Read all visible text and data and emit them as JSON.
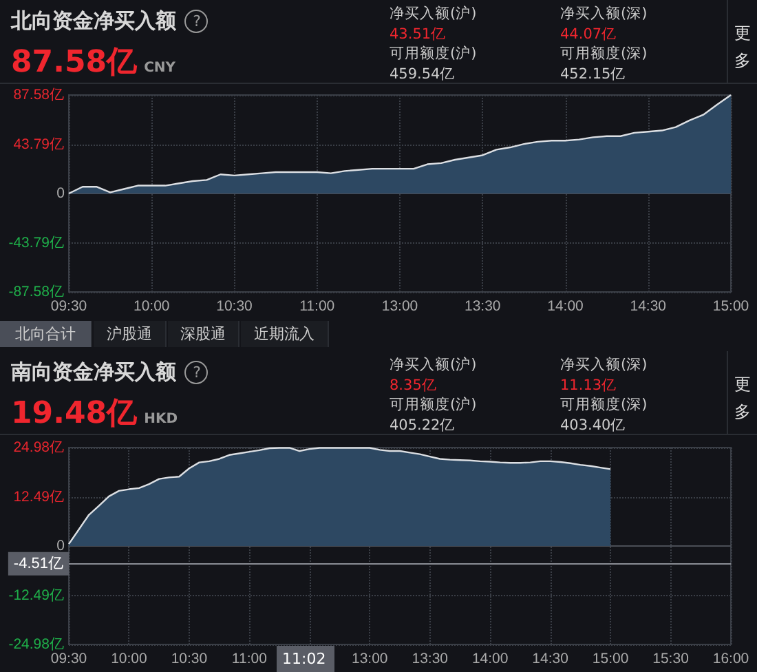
{
  "chart_data": [
    {
      "type": "area",
      "title": "北向资金净买入额",
      "subtitle": "87.58亿",
      "annotations": [
        "?",
        "CNY",
        "净买入额(沪)",
        "43.51亿",
        "净买入额(深)",
        "44.07亿",
        "可用额度(沪)",
        "459.54亿",
        "可用额度(深)",
        "452.15亿",
        "更多",
        "北向合计",
        "沪股通",
        "深股通",
        "近期流入"
      ],
      "categories": [
        "09:30",
        null,
        null,
        null,
        null,
        null,
        "10:00",
        null,
        null,
        null,
        null,
        null,
        "10:30",
        null,
        null,
        null,
        null,
        null,
        "11:00",
        null,
        null,
        null,
        null,
        null,
        "13:00",
        null,
        null,
        null,
        null,
        null,
        "13:30",
        null,
        null,
        null,
        null,
        null,
        "14:00",
        null,
        null,
        null,
        null,
        null,
        "14:30",
        null,
        null,
        null,
        null,
        null,
        "15:00"
      ],
      "series": [
        {
          "color": "#2d4862",
          "values": [
            0,
            6,
            6,
            1,
            4,
            7,
            7,
            7,
            9,
            11,
            12,
            17,
            16,
            17,
            18,
            19,
            19,
            19,
            19,
            18,
            20,
            21,
            22,
            22,
            22,
            22,
            26,
            27,
            30,
            32,
            34,
            39,
            41,
            44,
            46,
            47,
            47,
            48,
            50,
            51,
            51,
            54,
            55,
            56,
            59,
            65,
            70,
            79,
            87.58
          ]
        }
      ],
      "ylim": [
        -87.58,
        87.58
      ],
      "yticks": [
        {
          "value": -87.58,
          "label": "-87.58亿"
        },
        {
          "value": -43.79,
          "label": "-43.79亿"
        },
        0,
        {
          "value": 43.79,
          "label": "43.79亿"
        },
        {
          "value": 87.58,
          "label": "87.58亿"
        }
      ],
      "grid": true
    },
    {
      "type": "area",
      "title": "南向资金净买入额",
      "subtitle": "19.48亿",
      "annotations": [
        "?",
        "HKD",
        "净买入额(沪)",
        "8.35亿",
        "净买入额(深)",
        "11.13亿",
        "可用额度(沪)",
        "405.22亿",
        "可用额度(深)",
        "403.40亿",
        "更多",
        "11:02"
      ],
      "categories": [
        "09:30",
        null,
        null,
        null,
        null,
        null,
        "10:00",
        null,
        null,
        null,
        null,
        null,
        "10:30",
        null,
        null,
        null,
        null,
        null,
        "11:00",
        null,
        null,
        null,
        null,
        null,
        null,
        null,
        null,
        null,
        null,
        null,
        "13:00",
        null,
        null,
        null,
        null,
        null,
        "13:30",
        null,
        null,
        null,
        null,
        null,
        "14:00",
        null,
        null,
        null,
        null,
        null,
        "14:30",
        null,
        null,
        null,
        null,
        null,
        "15:00",
        null,
        null,
        null,
        null,
        null,
        "15:30",
        null,
        null,
        null,
        null,
        null,
        "16:00"
      ],
      "series": [
        {
          "color": "#2d4862",
          "values": [
            0.5,
            4.2,
            7.9,
            10.2,
            12.6,
            14.0,
            14.4,
            14.7,
            15.7,
            17.0,
            17.4,
            17.6,
            19.7,
            21.2,
            21.5,
            22.1,
            23.1,
            23.5,
            23.9,
            24.3,
            24.8,
            24.9,
            24.9,
            24.1,
            24.6,
            24.9,
            24.9,
            24.9,
            24.9,
            24.9,
            24.9,
            24.4,
            24.1,
            24.1,
            23.7,
            23.3,
            22.7,
            22.1,
            21.9,
            21.8,
            21.7,
            21.5,
            21.4,
            21.2,
            21.1,
            21.1,
            21.2,
            21.5,
            21.5,
            21.3,
            21.0,
            20.6,
            20.3,
            19.9,
            19.5,
            null,
            null,
            null,
            null,
            null,
            null,
            null,
            null,
            null,
            null,
            null,
            null
          ]
        }
      ],
      "ylim": [
        -24.98,
        24.98
      ],
      "yticks": [
        {
          "value": -24.98,
          "label": "-24.98亿"
        },
        {
          "value": -12.49,
          "label": "-12.49亿"
        },
        0,
        {
          "value": 12.49,
          "label": "12.49亿"
        },
        {
          "value": 24.98,
          "label": "24.98亿"
        }
      ],
      "grid": true,
      "ref_lines": [
        {
          "axis": "y",
          "value": -4.51,
          "label": "-4.51亿"
        }
      ]
    }
  ]
}
